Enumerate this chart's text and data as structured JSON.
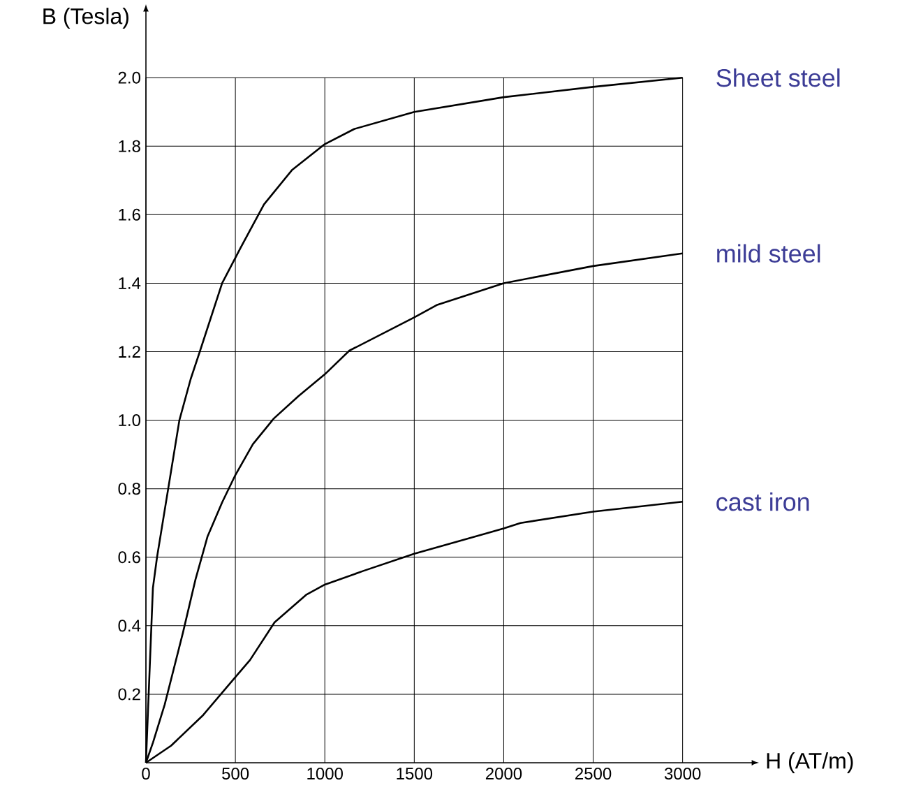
{
  "chart_data": {
    "type": "line",
    "xlabel": "H (AT/m)",
    "ylabel": "B (Tesla)",
    "xlim": [
      0,
      3380
    ],
    "ylim": [
      0,
      2.19
    ],
    "xticks": [
      0,
      500,
      1000,
      1500,
      2000,
      2500,
      3000
    ],
    "yticks": [
      {
        "value": 0.2,
        "label": "0.2"
      },
      {
        "value": 0.4,
        "label": "0.4"
      },
      {
        "value": 0.6,
        "label": "0.6"
      },
      {
        "value": 0.8,
        "label": "0.8"
      },
      {
        "value": 1.0,
        "label": "1.0"
      },
      {
        "value": 1.2,
        "label": "1.2"
      },
      {
        "value": 1.4,
        "label": "1.4"
      },
      {
        "value": 1.6,
        "label": "1.6"
      },
      {
        "value": 1.8,
        "label": "1.8"
      },
      {
        "value": 2.0,
        "label": "2.0"
      }
    ],
    "grid": true,
    "marker": "none",
    "line_style": "solid",
    "series": [
      {
        "name": "Sheet steel",
        "color": "#000000",
        "x": [
          0,
          39,
          62,
          187,
          250,
          301,
          426,
          531,
          660,
          816,
          1000,
          1164,
          1500,
          2000,
          2500,
          3000
        ],
        "values": [
          0,
          0.51,
          0.6,
          1.0,
          1.12,
          1.2,
          1.4,
          1.505,
          1.63,
          1.73,
          1.806,
          1.85,
          1.9,
          1.943,
          1.973,
          2.0
        ]
      },
      {
        "name": "mild steel",
        "color": "#000000",
        "x": [
          0,
          40,
          105,
          207,
          277,
          344,
          426,
          500,
          598,
          715,
          852,
          1000,
          1137,
          1500,
          1625,
          2000,
          2500,
          3000
        ],
        "values": [
          0,
          0.06,
          0.17,
          0.38,
          0.535,
          0.66,
          0.76,
          0.84,
          0.93,
          1.005,
          1.07,
          1.134,
          1.203,
          1.3,
          1.336,
          1.4,
          1.45,
          1.487
        ]
      },
      {
        "name": "cast iron",
        "color": "#000000",
        "x": [
          0,
          141,
          316,
          500,
          582,
          719,
          895,
          1000,
          1215,
          1500,
          2000,
          2094,
          2500,
          3000
        ],
        "values": [
          0,
          0.05,
          0.137,
          0.25,
          0.3,
          0.41,
          0.49,
          0.52,
          0.56,
          0.61,
          0.684,
          0.7,
          0.733,
          0.762
        ]
      }
    ]
  }
}
